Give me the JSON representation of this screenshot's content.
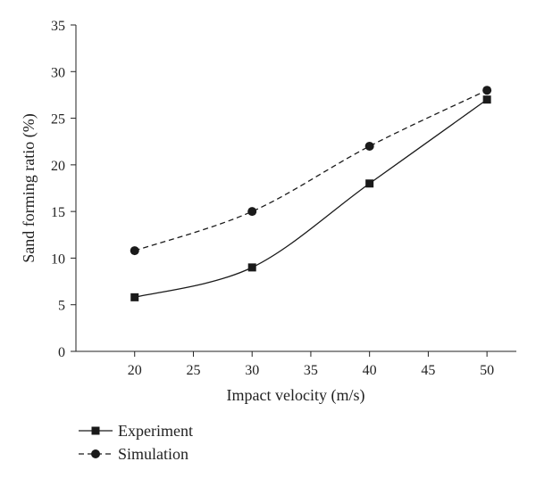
{
  "chart_data": {
    "type": "line",
    "xlabel": "Impact velocity (m/s)",
    "ylabel": "Sand forming ratio (%)",
    "xlim": [
      15,
      52.5
    ],
    "ylim": [
      0,
      35
    ],
    "xticks": [
      20,
      25,
      30,
      35,
      40,
      45,
      50
    ],
    "yticks": [
      0,
      5,
      10,
      15,
      20,
      25,
      30,
      35
    ],
    "grid": false,
    "legend_position": "bottom-left, below plot",
    "series": [
      {
        "name": "Experiment",
        "marker": "square",
        "line_style": "solid",
        "color": "#1a1a1a",
        "x": [
          20,
          30,
          40,
          50
        ],
        "y": [
          5.8,
          9.0,
          18.0,
          27.0
        ]
      },
      {
        "name": "Simulation",
        "marker": "circle",
        "line_style": "dashed",
        "color": "#1a1a1a",
        "x": [
          20,
          30,
          40,
          50
        ],
        "y": [
          10.8,
          15.0,
          22.0,
          28.0
        ]
      }
    ]
  }
}
